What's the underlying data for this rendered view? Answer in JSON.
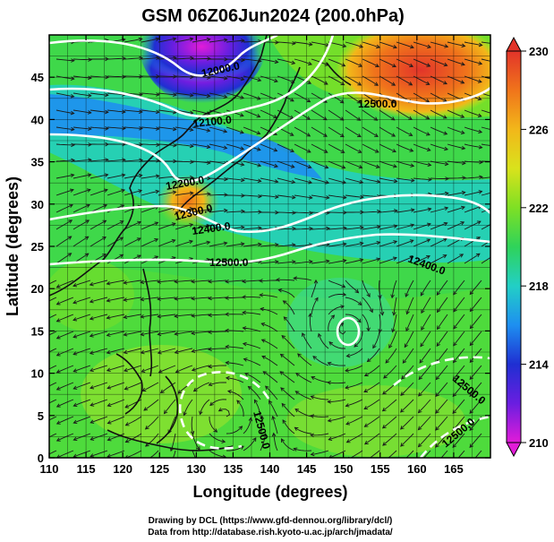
{
  "title": "GSM 06Z06Jun2024 (200.0hPa)",
  "x_axis": {
    "label": "Longitude (degrees)",
    "range": [
      110,
      170
    ],
    "ticks": [
      "110",
      "115",
      "120",
      "125",
      "130",
      "135",
      "140",
      "145",
      "150",
      "155",
      "160",
      "165"
    ]
  },
  "y_axis": {
    "label": "Latitude  (degrees)",
    "range": [
      0,
      50
    ],
    "ticks": [
      "0",
      "5",
      "10",
      "15",
      "20",
      "25",
      "30",
      "35",
      "40",
      "45"
    ]
  },
  "colorbar": {
    "min": 210,
    "max": 230,
    "tick_labels": [
      "210",
      "214",
      "218",
      "222",
      "226",
      "230"
    ],
    "colors": [
      "#e21cd8",
      "#6a1ee0",
      "#1f2fd2",
      "#1e8ff0",
      "#22cfc6",
      "#2fd35a",
      "#7ee024",
      "#d9e21c",
      "#f2b71a",
      "#f0741b",
      "#e2342a"
    ]
  },
  "contour_labels": [
    "12000.0",
    "12100.0",
    "12200.0",
    "12300.0",
    "12400.0",
    "12500.0",
    "12500.0",
    "12400.0",
    "12500.0",
    "12500.0",
    "12500.0"
  ],
  "footer": {
    "line1": "Drawing by DCL (https://www.gfd-dennou.org/library/dcl/)",
    "line2": "Data from http://database.rish.kyoto-u.ac.jp/arch/jmadata/"
  }
}
